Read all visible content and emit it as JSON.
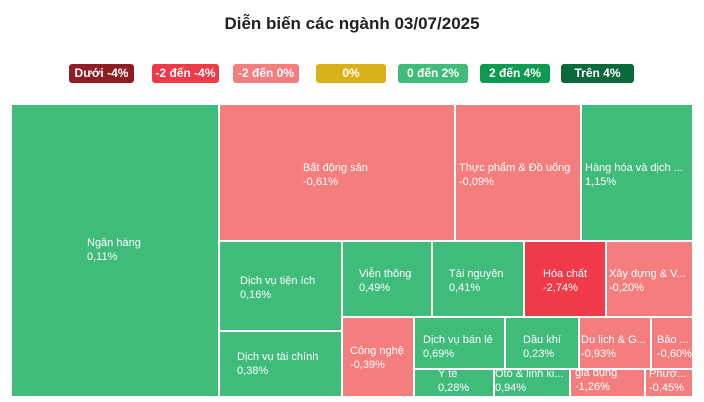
{
  "chart_data": {
    "type": "treemap",
    "title": "Diễn biến các ngành 03/07/2025",
    "legend": [
      {
        "label": "Dưới -4%",
        "color": "#8e1d24"
      },
      {
        "label": "-2 đến -4%",
        "color": "#f03a4a"
      },
      {
        "label": "-2 đến 0%",
        "color": "#f47e7e"
      },
      {
        "label": "0%",
        "color": "#d9b21a"
      },
      {
        "label": "0 đến 2%",
        "color": "#3fbb7a"
      },
      {
        "label": "2 đến 4%",
        "color": "#0f9a51"
      },
      {
        "label": "Trên 4%",
        "color": "#0b6a3b"
      }
    ],
    "sectors": [
      {
        "name": "Ngân hàng",
        "change": "0,11%",
        "value": 0.11
      },
      {
        "name": "Bất động sản",
        "change": "-0,61%",
        "value": -0.61
      },
      {
        "name": "Thực phẩm & Đồ uống",
        "change": "-0,09%",
        "value": -0.09
      },
      {
        "name": "Hàng hóa và dịch ...",
        "change": "1,15%",
        "value": 1.15
      },
      {
        "name": "Dịch vụ tiện ích",
        "change": "0,16%",
        "value": 0.16
      },
      {
        "name": "Viễn thông",
        "change": "0,49%",
        "value": 0.49
      },
      {
        "name": "Tài nguyên",
        "change": "0,41%",
        "value": 0.41
      },
      {
        "name": "Hóa chất",
        "change": "-2,74%",
        "value": -2.74
      },
      {
        "name": "Xây dựng & V...",
        "change": "-0,20%",
        "value": -0.2
      },
      {
        "name": "Dịch vụ tài chính",
        "change": "0,38%",
        "value": 0.38
      },
      {
        "name": "Công nghệ",
        "change": "-0,39%",
        "value": -0.39
      },
      {
        "name": "Dịch vụ bán lẻ",
        "change": "0,69%",
        "value": 0.69
      },
      {
        "name": "Dầu khí",
        "change": "0,23%",
        "value": 0.23
      },
      {
        "name": "Du lịch & G...",
        "change": "-0,93%",
        "value": -0.93
      },
      {
        "name": "Bảo ...",
        "change": "-0,60%",
        "value": -0.6
      },
      {
        "name": "Y tế",
        "change": "0,28%",
        "value": 0.28
      },
      {
        "name": "Ôtô & linh ki...",
        "change": "0,94%",
        "value": 0.94
      },
      {
        "name": "Đồ dùng cá nhân và đồ gia dụng",
        "change": "-1,26%",
        "value": -1.26
      },
      {
        "name": "Phươ...",
        "change": "-0,45%",
        "value": -0.45
      }
    ]
  }
}
